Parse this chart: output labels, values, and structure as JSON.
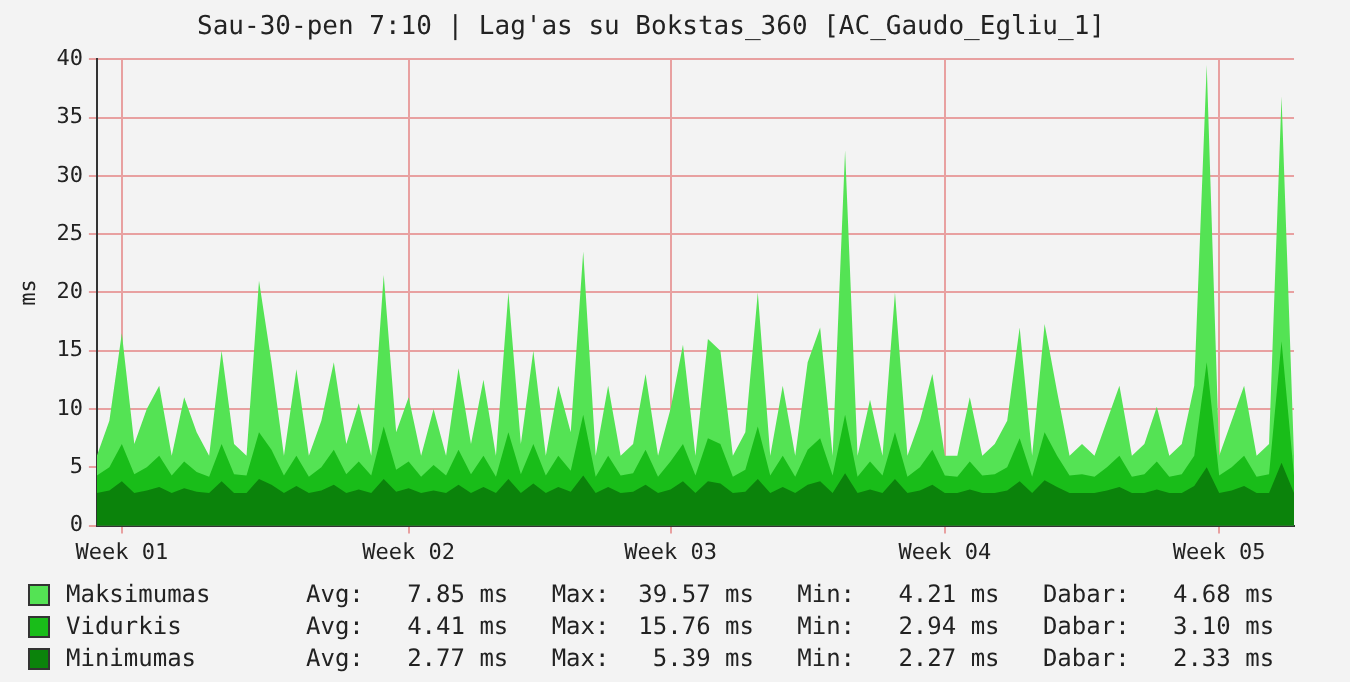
{
  "chart_data": {
    "type": "area",
    "title": "Sau-30-pen 7:10 | Lag'as su Bokstas_360 [AC_Gaudo_Egliu_1]",
    "ylabel": "ms",
    "categories": [
      null,
      null,
      "Week 01",
      null,
      null,
      null,
      null,
      null,
      null,
      null,
      null,
      null,
      null,
      null,
      null,
      null,
      null,
      null,
      null,
      null,
      null,
      null,
      null,
      null,
      null,
      "Week 02",
      null,
      null,
      null,
      null,
      null,
      null,
      null,
      null,
      null,
      null,
      null,
      null,
      null,
      null,
      null,
      null,
      null,
      null,
      null,
      null,
      "Week 03",
      null,
      null,
      null,
      null,
      null,
      null,
      null,
      null,
      null,
      null,
      null,
      null,
      null,
      null,
      null,
      null,
      null,
      null,
      null,
      null,
      null,
      "Week 04",
      null,
      null,
      null,
      null,
      null,
      null,
      null,
      null,
      null,
      null,
      null,
      null,
      null,
      null,
      null,
      null,
      null,
      null,
      null,
      null,
      null,
      "Week 05",
      null,
      null,
      null,
      null,
      null,
      null
    ],
    "series": [
      {
        "name": "Maksimumas",
        "color": "#54e354",
        "values": [
          6,
          9,
          16.5,
          7,
          10,
          12,
          6,
          11,
          8,
          6,
          15,
          7,
          6,
          21,
          14,
          6,
          13.4,
          6,
          9,
          14,
          7,
          10.5,
          6,
          21.5,
          8,
          11,
          6,
          10,
          6,
          13.5,
          7,
          12.5,
          6,
          20,
          7,
          15,
          6,
          12,
          8,
          23.5,
          6,
          12,
          6,
          7,
          13,
          6,
          10,
          15.5,
          6,
          16,
          15,
          6,
          8,
          20,
          6,
          12,
          6,
          14,
          17,
          6,
          32.2,
          6,
          10.8,
          6,
          20,
          6,
          9,
          13,
          6,
          6,
          11,
          6,
          7,
          9,
          17,
          6,
          17.3,
          11.5,
          6,
          7,
          6,
          9,
          12,
          6,
          7,
          10.2,
          6,
          7,
          12,
          39.5,
          6,
          9,
          12,
          6,
          7,
          36.8,
          6
        ]
      },
      {
        "name": "Vidurkis",
        "color": "#19bd19",
        "values": [
          4.3,
          5,
          7,
          4.4,
          5,
          6,
          4.3,
          5.5,
          4.6,
          4.2,
          7,
          4.4,
          4.3,
          8,
          6.5,
          4.3,
          6,
          4.2,
          5,
          6.5,
          4.4,
          5.5,
          4.3,
          8.5,
          4.8,
          5.5,
          4.2,
          5.2,
          4.3,
          6.5,
          4.4,
          6,
          4.2,
          8,
          4.4,
          7,
          4.3,
          6,
          4.7,
          9.5,
          4.2,
          6,
          4.3,
          4.5,
          6.5,
          4.2,
          5.5,
          7,
          4.3,
          7.5,
          7,
          4.2,
          4.8,
          8.5,
          4.3,
          6,
          4.2,
          6.5,
          7.5,
          4.3,
          9.5,
          4.2,
          5.5,
          4.3,
          8,
          4.2,
          5,
          6.5,
          4.3,
          4.2,
          5.5,
          4.3,
          4.4,
          5,
          7.5,
          4.2,
          8,
          6,
          4.3,
          4.4,
          4.2,
          5,
          6,
          4.2,
          4.4,
          5.5,
          4.2,
          4.4,
          6,
          14,
          4.3,
          5,
          6,
          4.2,
          4.4,
          15.8,
          4.3
        ]
      },
      {
        "name": "Minimumas",
        "color": "#0b830b",
        "values": [
          2.8,
          3,
          3.8,
          2.8,
          3,
          3.3,
          2.8,
          3.2,
          2.9,
          2.8,
          3.8,
          2.8,
          2.8,
          4,
          3.5,
          2.8,
          3.4,
          2.8,
          3,
          3.5,
          2.8,
          3.1,
          2.8,
          4,
          2.9,
          3.2,
          2.8,
          3,
          2.8,
          3.5,
          2.8,
          3.3,
          2.8,
          4,
          2.8,
          3.6,
          2.8,
          3.3,
          2.9,
          4.3,
          2.8,
          3.3,
          2.8,
          2.9,
          3.5,
          2.8,
          3.1,
          3.8,
          2.8,
          3.8,
          3.6,
          2.8,
          2.9,
          4,
          2.8,
          3.3,
          2.8,
          3.5,
          3.8,
          2.8,
          4.5,
          2.8,
          3.1,
          2.8,
          4,
          2.8,
          3,
          3.5,
          2.8,
          2.8,
          3.1,
          2.8,
          2.8,
          3,
          3.8,
          2.8,
          3.9,
          3.3,
          2.8,
          2.8,
          2.8,
          3,
          3.3,
          2.8,
          2.8,
          3.1,
          2.8,
          2.8,
          3.4,
          5,
          2.8,
          3,
          3.4,
          2.8,
          2.8,
          5.4,
          2.8
        ]
      }
    ],
    "ylim": [
      0,
      40
    ],
    "yticks": [
      0,
      5,
      10,
      15,
      20,
      25,
      30,
      35,
      40
    ],
    "grid": true,
    "legend": "bottom",
    "marker": "none",
    "annotations": [
      "Avg:   7.85 ms   Max:  39.57 ms   Min:   4.21 ms   Dabar:   4.68 ms",
      "Avg:   4.41 ms   Max:  15.76 ms   Min:   2.94 ms   Dabar:   3.10 ms",
      "Avg:   2.77 ms   Max:   5.39 ms   Min:   2.27 ms   Dabar:   2.33 ms"
    ]
  }
}
